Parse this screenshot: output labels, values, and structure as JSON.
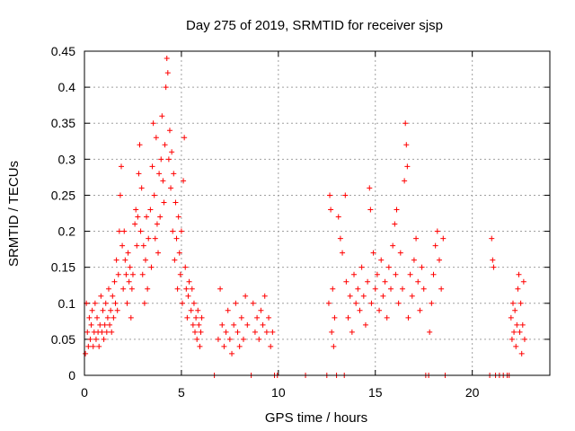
{
  "chart_data": {
    "type": "scatter",
    "title": "Day 275 of 2019, SRMTID for receiver sjsp",
    "xlabel": "GPS time / hours",
    "ylabel": "SRMTID / TECUs",
    "xlim": [
      0,
      24
    ],
    "ylim": [
      0,
      0.45
    ],
    "x_ticks": [
      0,
      5,
      10,
      15,
      20
    ],
    "y_ticks": [
      0,
      0.05,
      0.1,
      0.15,
      0.2,
      0.25,
      0.3,
      0.35,
      0.4,
      0.45
    ],
    "x_tick_labels": [
      "0",
      "5",
      "10",
      "15",
      "20"
    ],
    "y_tick_labels": [
      "0",
      "0.05",
      "0.1",
      "0.15",
      "0.2",
      "0.25",
      "0.3",
      "0.35",
      "0.4",
      "0.45"
    ],
    "grid": true,
    "marker": "+",
    "color": "#ff0000",
    "series": [
      {
        "name": "SRMTID",
        "points": [
          [
            0.05,
            0.03
          ],
          [
            0.1,
            0.1
          ],
          [
            0.15,
            0.06
          ],
          [
            0.2,
            0.04
          ],
          [
            0.25,
            0.08
          ],
          [
            0.3,
            0.05
          ],
          [
            0.35,
            0.07
          ],
          [
            0.4,
            0.09
          ],
          [
            0.45,
            0.04
          ],
          [
            0.5,
            0.06
          ],
          [
            0.55,
            0.1
          ],
          [
            0.6,
            0.05
          ],
          [
            0.65,
            0.08
          ],
          [
            0.7,
            0.06
          ],
          [
            0.75,
            0.04
          ],
          [
            0.8,
            0.07
          ],
          [
            0.85,
            0.11
          ],
          [
            0.9,
            0.06
          ],
          [
            0.95,
            0.09
          ],
          [
            1.0,
            0.05
          ],
          [
            1.05,
            0.07
          ],
          [
            1.1,
            0.1
          ],
          [
            1.15,
            0.06
          ],
          [
            1.2,
            0.08
          ],
          [
            1.25,
            0.12
          ],
          [
            1.3,
            0.07
          ],
          [
            1.35,
            0.09
          ],
          [
            1.4,
            0.06
          ],
          [
            1.45,
            0.11
          ],
          [
            1.5,
            0.08
          ],
          [
            1.55,
            0.13
          ],
          [
            1.6,
            0.1
          ],
          [
            1.65,
            0.16
          ],
          [
            1.7,
            0.09
          ],
          [
            1.75,
            0.14
          ],
          [
            1.8,
            0.2
          ],
          [
            1.85,
            0.25
          ],
          [
            1.9,
            0.29
          ],
          [
            1.95,
            0.18
          ],
          [
            2.0,
            0.12
          ],
          [
            2.05,
            0.2
          ],
          [
            2.1,
            0.16
          ],
          [
            2.15,
            0.14
          ],
          [
            2.2,
            0.1
          ],
          [
            2.25,
            0.17
          ],
          [
            2.3,
            0.13
          ],
          [
            2.35,
            0.15
          ],
          [
            2.4,
            0.08
          ],
          [
            2.45,
            0.12
          ],
          [
            2.5,
            0.14
          ],
          [
            2.6,
            0.21
          ],
          [
            2.65,
            0.23
          ],
          [
            2.7,
            0.18
          ],
          [
            2.75,
            0.22
          ],
          [
            2.8,
            0.28
          ],
          [
            2.85,
            0.32
          ],
          [
            2.9,
            0.2
          ],
          [
            2.95,
            0.26
          ],
          [
            3.0,
            0.14
          ],
          [
            3.05,
            0.18
          ],
          [
            3.1,
            0.1
          ],
          [
            3.15,
            0.16
          ],
          [
            3.2,
            0.22
          ],
          [
            3.25,
            0.12
          ],
          [
            3.3,
            0.19
          ],
          [
            3.4,
            0.23
          ],
          [
            3.45,
            0.15
          ],
          [
            3.5,
            0.29
          ],
          [
            3.55,
            0.35
          ],
          [
            3.6,
            0.25
          ],
          [
            3.65,
            0.19
          ],
          [
            3.7,
            0.33
          ],
          [
            3.75,
            0.21
          ],
          [
            3.8,
            0.17
          ],
          [
            3.85,
            0.28
          ],
          [
            3.9,
            0.22
          ],
          [
            3.95,
            0.3
          ],
          [
            4.0,
            0.36
          ],
          [
            4.05,
            0.27
          ],
          [
            4.1,
            0.24
          ],
          [
            4.15,
            0.32
          ],
          [
            4.2,
            0.4
          ],
          [
            4.25,
            0.44
          ],
          [
            4.3,
            0.42
          ],
          [
            4.35,
            0.3
          ],
          [
            4.4,
            0.34
          ],
          [
            4.45,
            0.26
          ],
          [
            4.5,
            0.31
          ],
          [
            4.55,
            0.2
          ],
          [
            4.6,
            0.28
          ],
          [
            4.65,
            0.16
          ],
          [
            4.7,
            0.24
          ],
          [
            4.75,
            0.19
          ],
          [
            4.8,
            0.12
          ],
          [
            4.85,
            0.22
          ],
          [
            4.9,
            0.17
          ],
          [
            4.95,
            0.14
          ],
          [
            5.0,
            0.2
          ],
          [
            5.05,
            0.1
          ],
          [
            5.1,
            0.27
          ],
          [
            5.15,
            0.33
          ],
          [
            5.2,
            0.15
          ],
          [
            5.25,
            0.12
          ],
          [
            5.3,
            0.08
          ],
          [
            5.35,
            0.11
          ],
          [
            5.4,
            0.13
          ],
          [
            5.5,
            0.09
          ],
          [
            5.55,
            0.12
          ],
          [
            5.6,
            0.07
          ],
          [
            5.65,
            0.1
          ],
          [
            5.7,
            0.06
          ],
          [
            5.75,
            0.08
          ],
          [
            5.8,
            0.05
          ],
          [
            5.85,
            0.09
          ],
          [
            5.9,
            0.07
          ],
          [
            5.95,
            0.04
          ],
          [
            6.0,
            0.06
          ],
          [
            6.05,
            0.08
          ],
          [
            6.7,
            0.0
          ],
          [
            6.9,
            0.05
          ],
          [
            7.0,
            0.12
          ],
          [
            7.1,
            0.07
          ],
          [
            7.2,
            0.04
          ],
          [
            7.3,
            0.06
          ],
          [
            7.4,
            0.09
          ],
          [
            7.5,
            0.05
          ],
          [
            7.6,
            0.03
          ],
          [
            7.7,
            0.07
          ],
          [
            7.8,
            0.1
          ],
          [
            7.9,
            0.06
          ],
          [
            8.0,
            0.04
          ],
          [
            8.1,
            0.08
          ],
          [
            8.2,
            0.05
          ],
          [
            8.3,
            0.11
          ],
          [
            8.4,
            0.07
          ],
          [
            8.6,
            0.0
          ],
          [
            8.7,
            0.1
          ],
          [
            8.8,
            0.06
          ],
          [
            8.9,
            0.08
          ],
          [
            9.0,
            0.05
          ],
          [
            9.1,
            0.09
          ],
          [
            9.2,
            0.07
          ],
          [
            9.3,
            0.11
          ],
          [
            9.4,
            0.06
          ],
          [
            9.5,
            0.08
          ],
          [
            9.6,
            0.04
          ],
          [
            9.7,
            0.06
          ],
          [
            9.8,
            0.0
          ],
          [
            9.95,
            0.0
          ],
          [
            11.4,
            0.0
          ],
          [
            12.5,
            0.0
          ],
          [
            12.6,
            0.1
          ],
          [
            12.65,
            0.25
          ],
          [
            12.7,
            0.23
          ],
          [
            12.75,
            0.06
          ],
          [
            12.8,
            0.12
          ],
          [
            12.85,
            0.04
          ],
          [
            12.9,
            0.08
          ],
          [
            13.0,
            0.0
          ],
          [
            13.1,
            0.22
          ],
          [
            13.2,
            0.19
          ],
          [
            13.3,
            0.17
          ],
          [
            13.4,
            0.0
          ],
          [
            13.45,
            0.25
          ],
          [
            13.5,
            0.13
          ],
          [
            13.6,
            0.08
          ],
          [
            13.7,
            0.11
          ],
          [
            13.8,
            0.06
          ],
          [
            13.9,
            0.14
          ],
          [
            14.0,
            0.1
          ],
          [
            14.1,
            0.12
          ],
          [
            14.2,
            0.09
          ],
          [
            14.3,
            0.15
          ],
          [
            14.4,
            0.11
          ],
          [
            14.5,
            0.07
          ],
          [
            14.6,
            0.13
          ],
          [
            14.7,
            0.26
          ],
          [
            14.75,
            0.23
          ],
          [
            14.8,
            0.1
          ],
          [
            14.9,
            0.17
          ],
          [
            15.0,
            0.12
          ],
          [
            15.1,
            0.14
          ],
          [
            15.2,
            0.09
          ],
          [
            15.3,
            0.16
          ],
          [
            15.4,
            0.11
          ],
          [
            15.5,
            0.13
          ],
          [
            15.6,
            0.08
          ],
          [
            15.7,
            0.15
          ],
          [
            15.8,
            0.12
          ],
          [
            15.9,
            0.18
          ],
          [
            16.0,
            0.21
          ],
          [
            16.05,
            0.14
          ],
          [
            16.1,
            0.23
          ],
          [
            16.2,
            0.1
          ],
          [
            16.3,
            0.17
          ],
          [
            16.4,
            0.12
          ],
          [
            16.5,
            0.27
          ],
          [
            16.55,
            0.35
          ],
          [
            16.6,
            0.32
          ],
          [
            16.65,
            0.29
          ],
          [
            16.7,
            0.08
          ],
          [
            16.8,
            0.14
          ],
          [
            16.9,
            0.11
          ],
          [
            17.0,
            0.16
          ],
          [
            17.1,
            0.19
          ],
          [
            17.2,
            0.13
          ],
          [
            17.3,
            0.09
          ],
          [
            17.4,
            0.15
          ],
          [
            17.5,
            0.12
          ],
          [
            17.6,
            0.0
          ],
          [
            17.75,
            0.0
          ],
          [
            17.8,
            0.06
          ],
          [
            17.9,
            0.1
          ],
          [
            18.0,
            0.14
          ],
          [
            18.1,
            0.18
          ],
          [
            18.2,
            0.2
          ],
          [
            18.3,
            0.16
          ],
          [
            18.4,
            0.12
          ],
          [
            18.5,
            0.19
          ],
          [
            18.6,
            0.0
          ],
          [
            20.9,
            0.0
          ],
          [
            21.0,
            0.19
          ],
          [
            21.05,
            0.16
          ],
          [
            21.1,
            0.15
          ],
          [
            21.2,
            0.0
          ],
          [
            21.4,
            0.0
          ],
          [
            21.6,
            0.0
          ],
          [
            21.8,
            0.0
          ],
          [
            21.9,
            0.0
          ],
          [
            22.0,
            0.08
          ],
          [
            22.05,
            0.05
          ],
          [
            22.1,
            0.1
          ],
          [
            22.15,
            0.06
          ],
          [
            22.2,
            0.09
          ],
          [
            22.25,
            0.04
          ],
          [
            22.3,
            0.07
          ],
          [
            22.35,
            0.12
          ],
          [
            22.4,
            0.14
          ],
          [
            22.45,
            0.06
          ],
          [
            22.5,
            0.1
          ],
          [
            22.55,
            0.03
          ],
          [
            22.6,
            0.07
          ],
          [
            22.65,
            0.13
          ],
          [
            22.7,
            0.05
          ]
        ]
      }
    ]
  }
}
